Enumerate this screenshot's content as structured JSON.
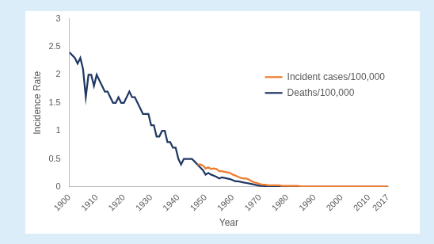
{
  "chart_data": {
    "type": "line",
    "x_label": "Year",
    "y_label": "Incidence Rate",
    "x": [
      1900,
      1901,
      1902,
      1903,
      1904,
      1905,
      1906,
      1907,
      1908,
      1909,
      1910,
      1911,
      1912,
      1913,
      1914,
      1915,
      1916,
      1917,
      1918,
      1919,
      1920,
      1921,
      1922,
      1923,
      1924,
      1925,
      1926,
      1927,
      1928,
      1929,
      1930,
      1931,
      1932,
      1933,
      1934,
      1935,
      1936,
      1937,
      1938,
      1939,
      1940,
      1941,
      1942,
      1943,
      1944,
      1945,
      1946,
      1947,
      1948,
      1949,
      1950,
      1951,
      1952,
      1953,
      1954,
      1955,
      1956,
      1957,
      1958,
      1959,
      1960,
      1961,
      1962,
      1963,
      1964,
      1965,
      1966,
      1967,
      1968,
      1969,
      1970,
      1971,
      1972,
      1973,
      1974,
      1975,
      1976,
      1977,
      1978,
      1979,
      1980,
      1981,
      1982,
      1983,
      1984,
      1985,
      1986,
      1987,
      1988,
      1989,
      1990,
      1991,
      1992,
      1993,
      1994,
      1995,
      1996,
      1997,
      1998,
      1999,
      2000,
      2001,
      2002,
      2003,
      2004,
      2005,
      2006,
      2007,
      2008,
      2009,
      2010,
      2011,
      2012,
      2013,
      2014,
      2015,
      2016,
      2017
    ],
    "series": [
      {
        "name": "Incident cases/100,000",
        "color": "#ed7d31",
        "values": [
          null,
          null,
          null,
          null,
          null,
          null,
          null,
          null,
          null,
          null,
          null,
          null,
          null,
          null,
          null,
          null,
          null,
          null,
          null,
          null,
          null,
          null,
          null,
          null,
          null,
          null,
          null,
          null,
          null,
          null,
          null,
          null,
          null,
          null,
          null,
          null,
          null,
          null,
          null,
          null,
          null,
          null,
          null,
          null,
          null,
          null,
          null,
          0.4,
          0.4,
          0.38,
          0.33,
          0.35,
          0.32,
          0.33,
          0.32,
          0.28,
          0.28,
          0.27,
          0.26,
          0.25,
          0.22,
          0.2,
          0.18,
          0.16,
          0.15,
          0.15,
          0.13,
          0.1,
          0.08,
          0.07,
          0.05,
          0.04,
          0.04,
          0.03,
          0.03,
          0.03,
          0.03,
          0.03,
          0.02,
          0.02,
          0.02,
          0.02,
          0.02,
          0.02,
          0.02,
          0.01,
          0.01,
          0.01,
          0.01,
          0.01,
          0.01,
          0.01,
          0.01,
          0.01,
          0.01,
          0.01,
          0.01,
          0.01,
          0.01,
          0.01,
          0.01,
          0.01,
          0.01,
          0.01,
          0.01,
          0.01,
          0.01,
          0.01,
          0.01,
          0.01,
          0.01,
          0.01,
          0.01,
          0.01,
          0.01,
          0.01,
          0.01,
          0.01
        ]
      },
      {
        "name": "Deaths/100,000",
        "color": "#203864",
        "values": [
          2.4,
          2.35,
          2.3,
          2.2,
          2.3,
          2.1,
          1.6,
          2.0,
          2.0,
          1.8,
          2.0,
          1.9,
          1.8,
          1.7,
          1.7,
          1.6,
          1.5,
          1.5,
          1.6,
          1.5,
          1.5,
          1.6,
          1.7,
          1.6,
          1.6,
          1.5,
          1.4,
          1.3,
          1.3,
          1.3,
          1.1,
          1.1,
          0.9,
          0.9,
          1.0,
          1.0,
          0.8,
          0.8,
          0.7,
          0.7,
          0.5,
          0.4,
          0.5,
          0.5,
          0.5,
          0.5,
          0.45,
          0.4,
          0.35,
          0.3,
          0.22,
          0.25,
          0.22,
          0.2,
          0.18,
          0.15,
          0.17,
          0.16,
          0.15,
          0.14,
          0.12,
          0.1,
          0.1,
          0.09,
          0.08,
          0.07,
          0.06,
          0.05,
          0.04,
          0.03,
          0.02,
          0.02,
          0.01,
          0.01,
          0.01,
          0.01,
          0.01,
          0.01,
          0.01,
          0.01,
          0.01,
          0.01,
          0.01,
          0.01,
          0.01,
          0,
          0,
          0,
          0,
          0,
          0,
          0,
          0,
          0,
          0,
          0,
          0,
          0,
          0,
          0,
          0,
          0,
          0,
          0,
          0,
          0,
          0,
          0,
          0,
          0,
          0,
          0,
          0,
          0,
          0,
          0,
          0,
          0
        ]
      }
    ],
    "xlim": [
      1900,
      2017
    ],
    "xticks": [
      1900,
      1910,
      1920,
      1930,
      1940,
      1950,
      1960,
      1970,
      1980,
      1990,
      2000,
      2010,
      2017
    ],
    "ylim": [
      0,
      3
    ],
    "yticks": [
      0,
      0.5,
      1,
      1.5,
      2,
      2.5,
      3
    ],
    "grid": false,
    "legend": "upper right"
  }
}
